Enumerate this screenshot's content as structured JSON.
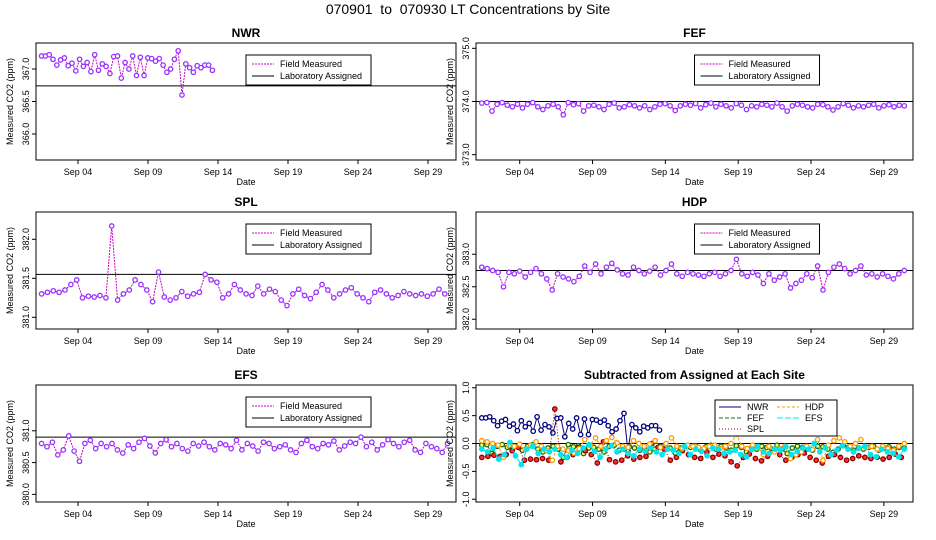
{
  "page_title": "070901  to  070930 LT Concentrations by Site",
  "xtick_labels": [
    "Sep 04",
    "Sep 09",
    "Sep 14",
    "Sep 19",
    "Sep 24",
    "Sep 29"
  ],
  "colors": {
    "field": "#cc00cc",
    "field_point": "#9933ff",
    "lab": "#000000",
    "NWR": "#000080",
    "FEF": "#1a6b1a",
    "SPL": "#8b0000",
    "HDP": "#ff9900",
    "EFS": "#00e5ee"
  },
  "chart_data": [
    {
      "type": "line",
      "id": "NWR",
      "title": "NWR",
      "xlabel": "Date",
      "ylabel": "Measured CO2 (ppm)",
      "x_days": [
        1,
        31
      ],
      "ylim": [
        365.6,
        367.4
      ],
      "yticks": [
        "366.0",
        "366.5",
        "367.0"
      ],
      "legend": [
        "Field Measured",
        "Laboratory Assigned"
      ],
      "lab_value": 366.74,
      "series": [
        {
          "name": "Field Measured",
          "x_start": 1.4,
          "x_end": 13.6,
          "values": [
            367.2,
            367.2,
            367.22,
            367.15,
            367.06,
            367.14,
            367.17,
            367.05,
            367.09,
            366.97,
            367.15,
            367.04,
            367.1,
            366.96,
            367.22,
            366.98,
            367.08,
            367.04,
            366.93,
            367.19,
            367.2,
            366.86,
            367.1,
            367.0,
            367.2,
            366.9,
            367.18,
            366.9,
            367.17,
            367.16,
            367.12,
            367.16,
            367.06,
            366.95,
            367.0,
            367.15,
            367.28,
            366.6,
            367.08,
            367.02,
            366.95,
            367.05,
            367.02,
            367.06,
            367.06,
            366.98
          ]
        }
      ]
    },
    {
      "type": "line",
      "id": "FEF",
      "title": "FEF",
      "xlabel": "Date",
      "ylabel": "Measured CO2 (ppm)",
      "x_days": [
        1,
        31
      ],
      "ylim": [
        372.9,
        375.1
      ],
      "yticks": [
        "373.0",
        "374.0",
        "375.0"
      ],
      "legend": [
        "Field Measured",
        "Laboratory Assigned"
      ],
      "lab_value": 374.0,
      "series": [
        {
          "name": "Field Measured",
          "x_start": 1.4,
          "x_end": 30.4,
          "values": [
            373.97,
            373.98,
            373.82,
            373.95,
            373.98,
            373.93,
            373.9,
            373.95,
            373.88,
            373.95,
            373.98,
            373.9,
            373.85,
            373.92,
            373.95,
            373.9,
            373.75,
            373.98,
            373.94,
            373.96,
            373.82,
            373.92,
            373.93,
            373.9,
            373.85,
            373.95,
            373.97,
            373.88,
            373.9,
            373.94,
            373.92,
            373.88,
            373.92,
            373.85,
            373.9,
            373.95,
            373.96,
            373.92,
            373.83,
            373.92,
            373.95,
            373.93,
            373.96,
            373.88,
            373.94,
            373.97,
            373.9,
            373.95,
            373.92,
            373.88,
            373.96,
            373.93,
            373.85,
            373.92,
            373.9,
            373.95,
            373.93,
            373.9,
            373.97,
            373.9,
            373.82,
            373.92,
            373.95,
            373.93,
            373.9,
            373.88,
            373.95,
            373.94,
            373.9,
            373.84,
            373.9,
            373.96,
            373.93,
            373.88,
            373.92,
            373.9,
            373.93,
            373.95,
            373.88,
            373.92,
            373.94,
            373.9,
            373.93,
            373.92
          ]
        }
      ]
    },
    {
      "type": "line",
      "id": "SPL",
      "title": "SPL",
      "xlabel": "Date",
      "ylabel": "Measured CO2 (ppm)",
      "x_days": [
        1,
        31
      ],
      "ylim": [
        380.85,
        382.35
      ],
      "yticks": [
        "381.0",
        "381.5",
        "382.0"
      ],
      "legend": [
        "Field Measured",
        "Laboratory Assigned"
      ],
      "lab_value": 381.55,
      "series": [
        {
          "name": "Field Measured",
          "x_start": 1.4,
          "x_end": 30.2,
          "values": [
            381.3,
            381.32,
            381.34,
            381.32,
            381.35,
            381.42,
            381.48,
            381.25,
            381.27,
            381.26,
            381.28,
            381.25,
            382.17,
            381.22,
            381.3,
            381.35,
            381.48,
            381.42,
            381.35,
            381.2,
            381.58,
            381.26,
            381.22,
            381.25,
            381.33,
            381.27,
            381.3,
            381.32,
            381.55,
            381.48,
            381.45,
            381.25,
            381.3,
            381.42,
            381.35,
            381.3,
            381.28,
            381.4,
            381.3,
            381.36,
            381.33,
            381.22,
            381.15,
            381.3,
            381.36,
            381.28,
            381.24,
            381.32,
            381.42,
            381.35,
            381.25,
            381.3,
            381.35,
            381.38,
            381.3,
            381.25,
            381.2,
            381.32,
            381.35,
            381.3,
            381.25,
            381.28,
            381.33,
            381.3,
            381.28,
            381.3,
            381.27,
            381.3,
            381.36,
            381.3
          ]
        }
      ]
    },
    {
      "type": "line",
      "id": "HDP",
      "title": "HDP",
      "xlabel": "Date",
      "ylabel": "Measured CO2 (ppm)",
      "x_days": [
        1,
        31
      ],
      "ylim": [
        381.85,
        383.65
      ],
      "yticks": [
        "382.0",
        "382.5",
        "383.0"
      ],
      "legend": [
        "Field Measured",
        "Laboratory Assigned"
      ],
      "lab_value": 382.75,
      "series": [
        {
          "name": "Field Measured",
          "x_start": 1.4,
          "x_end": 30.4,
          "values": [
            382.8,
            382.78,
            382.75,
            382.72,
            382.5,
            382.72,
            382.7,
            382.74,
            382.65,
            382.72,
            382.78,
            382.7,
            382.62,
            382.45,
            382.7,
            382.65,
            382.62,
            382.58,
            382.66,
            382.82,
            382.72,
            382.85,
            382.7,
            382.8,
            382.86,
            382.76,
            382.7,
            382.68,
            382.8,
            382.75,
            382.7,
            382.74,
            382.8,
            382.68,
            382.75,
            382.85,
            382.7,
            382.66,
            382.72,
            382.7,
            382.68,
            382.66,
            382.7,
            382.72,
            382.66,
            382.7,
            382.75,
            382.92,
            382.7,
            382.66,
            382.72,
            382.68,
            382.55,
            382.7,
            382.6,
            382.65,
            382.7,
            382.48,
            382.55,
            382.6,
            382.7,
            382.64,
            382.82,
            382.45,
            382.72,
            382.8,
            382.85,
            382.78,
            382.7,
            382.75,
            382.82,
            382.68,
            382.7,
            382.65,
            382.7,
            382.66,
            382.62,
            382.7,
            382.75
          ]
        }
      ]
    },
    {
      "type": "line",
      "id": "EFS",
      "title": "EFS",
      "xlabel": "Date",
      "ylabel": "Measured CO2 (ppm)",
      "x_days": [
        1,
        31
      ],
      "ylim": [
        379.88,
        381.72
      ],
      "yticks": [
        "380.0",
        "380.5",
        "381.0"
      ],
      "legend": [
        "Field Measured",
        "Laboratory Assigned"
      ],
      "lab_value": 380.9,
      "series": [
        {
          "name": "Field Measured",
          "x_start": 1.4,
          "x_end": 30.4,
          "values": [
            380.8,
            380.75,
            380.82,
            380.62,
            380.7,
            380.92,
            380.68,
            380.52,
            380.8,
            380.85,
            380.72,
            380.8,
            380.75,
            380.8,
            380.7,
            380.65,
            380.78,
            380.72,
            380.82,
            380.88,
            380.76,
            380.65,
            380.8,
            380.86,
            380.75,
            380.8,
            380.72,
            380.68,
            380.8,
            380.76,
            380.82,
            380.75,
            380.7,
            380.8,
            380.78,
            380.72,
            380.85,
            380.7,
            380.8,
            380.76,
            380.68,
            380.82,
            380.8,
            380.72,
            380.75,
            380.78,
            380.7,
            380.66,
            380.8,
            380.85,
            380.75,
            380.72,
            380.8,
            380.78,
            380.84,
            380.7,
            380.76,
            380.82,
            380.8,
            380.9,
            380.75,
            380.82,
            380.7,
            380.78,
            380.86,
            380.8,
            380.75,
            380.82,
            380.85,
            380.7,
            380.66,
            380.8,
            380.75,
            380.72,
            380.66,
            380.8
          ]
        }
      ]
    },
    {
      "type": "line",
      "id": "DIFF",
      "title": "Subtracted from Assigned at Each Site",
      "xlabel": "Date",
      "ylabel": "Measured CO2 (ppm)",
      "x_days": [
        1,
        31
      ],
      "ylim": [
        -1.05,
        1.05
      ],
      "yticks": [
        "-1.0",
        "-0.5",
        "0.0",
        "0.5",
        "1.0"
      ],
      "zero": 0,
      "legend": [
        "NWR",
        "FEF",
        "SPL",
        "HDP",
        "EFS"
      ],
      "series": [
        {
          "name": "NWR",
          "x_start": 1.4,
          "x_end": 13.6,
          "values": [
            0.46,
            0.46,
            0.48,
            0.41,
            0.32,
            0.4,
            0.43,
            0.31,
            0.35,
            0.23,
            0.41,
            0.3,
            0.36,
            0.22,
            0.48,
            0.24,
            0.34,
            0.3,
            0.19,
            0.45,
            0.46,
            0.12,
            0.36,
            0.26,
            0.46,
            0.16,
            0.44,
            0.16,
            0.43,
            0.42,
            0.38,
            0.42,
            0.32,
            0.21,
            0.26,
            0.41,
            0.54,
            -0.14,
            0.34,
            0.28,
            0.21,
            0.31,
            0.28,
            0.32,
            0.32,
            0.24
          ]
        },
        {
          "name": "FEF",
          "x_start": 1.4,
          "x_end": 30.4,
          "values": [
            -0.03,
            -0.02,
            -0.18,
            -0.05,
            -0.02,
            -0.07,
            -0.1,
            -0.05,
            -0.12,
            -0.05,
            -0.02,
            -0.1,
            -0.15,
            -0.08,
            -0.05,
            -0.1,
            -0.25,
            -0.02,
            -0.06,
            -0.04,
            -0.18,
            -0.08,
            -0.07,
            -0.1,
            -0.15,
            -0.05,
            -0.03,
            -0.12,
            -0.1,
            -0.06,
            -0.08,
            -0.12,
            -0.08,
            -0.15,
            -0.1,
            -0.05,
            -0.04,
            -0.08,
            -0.17,
            -0.08,
            -0.05,
            -0.07,
            -0.04,
            -0.12,
            -0.06,
            -0.03,
            -0.1,
            -0.05,
            -0.08,
            -0.12,
            -0.04,
            -0.07,
            -0.15,
            -0.08,
            -0.1,
            -0.05,
            -0.07,
            -0.1,
            -0.03,
            -0.1,
            -0.18,
            -0.08,
            -0.05,
            -0.07,
            -0.1,
            -0.12,
            -0.05,
            -0.06,
            -0.1,
            -0.16,
            -0.1,
            -0.04,
            -0.07,
            -0.12,
            -0.08,
            -0.1,
            -0.07,
            -0.05,
            -0.12,
            -0.08,
            -0.06,
            -0.1,
            -0.07,
            -0.08
          ]
        },
        {
          "name": "SPL",
          "x_start": 1.4,
          "x_end": 30.2,
          "values": [
            -0.25,
            -0.23,
            -0.21,
            -0.23,
            -0.2,
            -0.13,
            -0.07,
            -0.3,
            -0.28,
            -0.29,
            -0.27,
            -0.3,
            0.62,
            -0.33,
            -0.25,
            -0.2,
            -0.07,
            -0.13,
            -0.2,
            -0.35,
            0.03,
            -0.29,
            -0.33,
            -0.3,
            -0.22,
            -0.28,
            -0.25,
            -0.23,
            0.0,
            -0.07,
            -0.1,
            -0.3,
            -0.25,
            -0.13,
            -0.2,
            -0.25,
            -0.27,
            -0.15,
            -0.25,
            -0.19,
            -0.22,
            -0.33,
            -0.4,
            -0.25,
            -0.19,
            -0.27,
            -0.31,
            -0.23,
            -0.13,
            -0.2,
            -0.3,
            -0.25,
            -0.2,
            -0.17,
            -0.25,
            -0.3,
            -0.35,
            -0.23,
            -0.2,
            -0.25,
            -0.3,
            -0.27,
            -0.22,
            -0.25,
            -0.27,
            -0.25,
            -0.28,
            -0.25,
            -0.19,
            -0.25
          ]
        },
        {
          "name": "HDP",
          "x_start": 1.4,
          "x_end": 30.4,
          "values": [
            0.05,
            0.03,
            0.0,
            -0.03,
            -0.25,
            -0.03,
            -0.05,
            -0.01,
            -0.1,
            -0.03,
            0.03,
            -0.05,
            -0.13,
            -0.3,
            -0.05,
            -0.1,
            -0.13,
            -0.17,
            -0.09,
            0.07,
            -0.03,
            0.1,
            -0.05,
            0.05,
            0.11,
            0.01,
            -0.05,
            -0.07,
            0.05,
            0.0,
            -0.05,
            -0.01,
            0.05,
            -0.07,
            0.0,
            0.1,
            -0.05,
            -0.09,
            -0.03,
            -0.05,
            -0.07,
            -0.09,
            -0.05,
            -0.03,
            -0.09,
            -0.05,
            0.0,
            0.17,
            -0.05,
            -0.09,
            -0.03,
            -0.07,
            -0.2,
            -0.05,
            -0.15,
            -0.1,
            -0.05,
            -0.27,
            -0.2,
            -0.15,
            -0.05,
            -0.11,
            0.07,
            -0.3,
            -0.03,
            0.05,
            0.1,
            0.03,
            -0.05,
            0.0,
            0.07,
            -0.07,
            -0.05,
            -0.1,
            -0.05,
            -0.09,
            -0.13,
            -0.05,
            0.0
          ]
        },
        {
          "name": "EFS",
          "x_start": 1.4,
          "x_end": 30.4,
          "values": [
            -0.1,
            -0.15,
            -0.08,
            -0.28,
            -0.2,
            0.02,
            -0.22,
            -0.38,
            -0.1,
            -0.05,
            -0.18,
            -0.1,
            -0.15,
            -0.1,
            -0.2,
            -0.25,
            -0.12,
            -0.18,
            -0.08,
            -0.02,
            -0.14,
            -0.25,
            -0.1,
            -0.04,
            -0.15,
            -0.1,
            -0.18,
            -0.22,
            -0.1,
            -0.14,
            -0.08,
            -0.15,
            -0.2,
            -0.1,
            -0.12,
            -0.18,
            -0.05,
            -0.2,
            -0.1,
            -0.14,
            -0.22,
            -0.08,
            -0.1,
            -0.18,
            -0.15,
            -0.12,
            -0.2,
            -0.24,
            -0.1,
            -0.05,
            -0.15,
            -0.18,
            -0.1,
            -0.12,
            -0.06,
            -0.2,
            -0.14,
            -0.08,
            -0.1,
            0.0,
            -0.15,
            -0.08,
            -0.2,
            -0.12,
            -0.04,
            -0.1,
            -0.15,
            -0.08,
            -0.05,
            -0.2,
            -0.24,
            -0.1,
            -0.15,
            -0.18,
            -0.24,
            -0.1
          ]
        }
      ]
    }
  ]
}
